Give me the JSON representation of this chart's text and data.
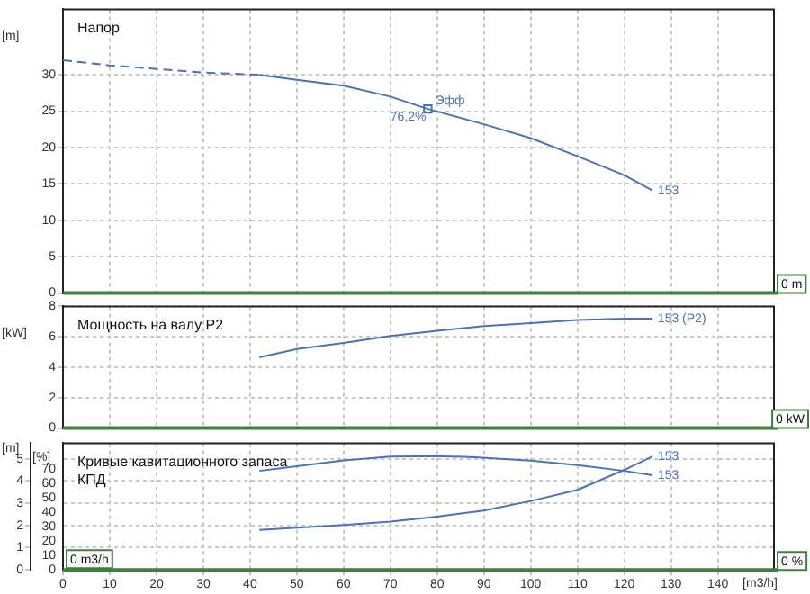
{
  "chart_data": [
    {
      "type": "line",
      "title": "Напор",
      "ylabel": "[m]",
      "xlim": [
        0,
        152
      ],
      "xticks": [
        0,
        10,
        20,
        30,
        40,
        50,
        60,
        70,
        80,
        90,
        100,
        110,
        120,
        130,
        140
      ],
      "ylim": [
        0,
        39
      ],
      "yticks": [
        0,
        5,
        10,
        15,
        20,
        25,
        30
      ],
      "tick_labels": "y",
      "grid": true,
      "legend": false,
      "marker": "none",
      "series": [
        {
          "color": "#4a72b8",
          "line_style": "dashed",
          "x": [
            0,
            10,
            20,
            30,
            42
          ],
          "values": [
            32,
            31.3,
            30.8,
            30.3,
            30
          ]
        },
        {
          "name": "153",
          "color": "#4a72b8",
          "x": [
            42,
            50,
            60,
            70,
            78,
            90,
            100,
            110,
            120,
            126
          ],
          "values": [
            30,
            29.3,
            28.5,
            27,
            25.3,
            23.2,
            21.3,
            18.8,
            16.2,
            14.1
          ]
        },
        {
          "type": "scatter",
          "marker": "square",
          "color": "#4a72b8",
          "x": [
            78
          ],
          "values": [
            25.3
          ]
        }
      ],
      "annotations": [
        {
          "text": "Эфф",
          "x": 78,
          "y": 25.3
        },
        {
          "text": "76,2%",
          "x": 78,
          "y": 25.3
        },
        "0 m"
      ]
    },
    {
      "type": "line",
      "title": "Мощность на валу P2",
      "ylabel": "[kW]",
      "xlim": [
        0,
        152
      ],
      "xticks": [
        0,
        10,
        20,
        30,
        40,
        50,
        60,
        70,
        80,
        90,
        100,
        110,
        120,
        130,
        140
      ],
      "ylim": [
        0,
        8
      ],
      "yticks": [
        0,
        2,
        4,
        6,
        8
      ],
      "tick_labels": "y",
      "grid": true,
      "legend": false,
      "marker": "none",
      "series": [
        {
          "name": "153 (P2)",
          "color": "#4a72b8",
          "x": [
            42,
            50,
            60,
            70,
            80,
            90,
            100,
            110,
            120,
            126
          ],
          "values": [
            4.65,
            5.2,
            5.6,
            6.06,
            6.4,
            6.7,
            6.9,
            7.1,
            7.2,
            7.2
          ]
        }
      ],
      "annotations": [
        "0 kW"
      ]
    },
    {
      "type": "line",
      "title": "Кривые кавитационного запаса",
      "subtitle": "КПД",
      "xlabel": "[m3/h]",
      "ylabel": "[%]",
      "y2label": "[m]",
      "xlim": [
        0,
        152
      ],
      "xticks": [
        0,
        10,
        20,
        30,
        40,
        50,
        60,
        70,
        80,
        90,
        100,
        110,
        120,
        130,
        140
      ],
      "ylim": [
        0,
        88
      ],
      "yticks": [
        0,
        10,
        20,
        30,
        40,
        50,
        60,
        70
      ],
      "y2lim": [
        0,
        5.7
      ],
      "y2ticks": [
        0,
        1,
        2,
        3,
        4,
        5
      ],
      "grid": true,
      "legend": false,
      "marker": "none",
      "series": [
        {
          "name": "153",
          "color": "#4a72b8",
          "x": [
            42,
            50,
            60,
            70,
            80,
            88,
            100,
            110,
            120,
            126
          ],
          "values": [
            68.8,
            72,
            76,
            78.7,
            79.1,
            78.3,
            75.9,
            72.8,
            68.8,
            65.8
          ]
        },
        {
          "name": "153",
          "color": "#4a72b8",
          "axis": "y2",
          "x": [
            42,
            60,
            70,
            80,
            90,
            100,
            110,
            120,
            126
          ],
          "values": [
            1.8,
            2.02,
            2.17,
            2.4,
            2.67,
            3.1,
            3.6,
            4.5,
            5.1
          ]
        }
      ],
      "annotations": [
        "0 m3/h",
        "0 %"
      ]
    }
  ]
}
